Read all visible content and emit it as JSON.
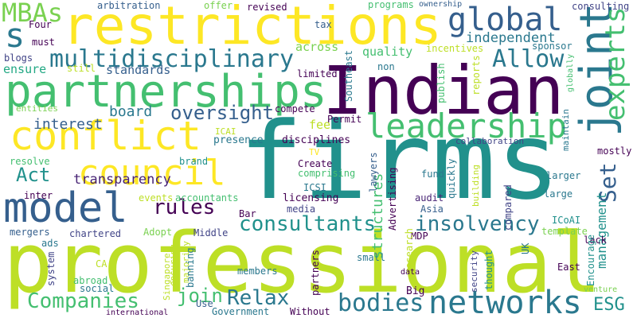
{
  "palette": {
    "dark-purple": "#440154",
    "indigo": "#482475",
    "blue-violet": "#414487",
    "slate-blue": "#355f8d",
    "steel-blue": "#2a788e",
    "teal": "#21918c",
    "sea-green": "#22a884",
    "green": "#44bf70",
    "light-green": "#7ad151",
    "lime": "#bddf26",
    "yellow": "#fde725"
  },
  "words": {
    "firms": "firms",
    "professional": "professional",
    "indian": "Indian",
    "restrictions": "restrictions",
    "partnerships": "partnerships",
    "conflict": "conflict",
    "joint": "joint",
    "model": "model",
    "council": "council",
    "leadership": "leadership",
    "networks": "networks",
    "global": "global",
    "multidisciplinary": "multidisciplinary",
    "experts": "experts",
    "bodies": "bodies",
    "mbas": "MBAs",
    "s": "s",
    "allow": "Allow",
    "consultants": "consultants",
    "insolvency": "insolvency",
    "companies": "Companies",
    "rules": "rules",
    "oversight": "oversight",
    "relax": "Relax",
    "set": "Set",
    "act": "Act",
    "join": "join",
    "esg": "ESG",
    "board": "board",
    "interest": "interest",
    "transparency": "transparency",
    "independent": "independent",
    "structures": "structures",
    "management": "management",
    "ensure": "ensure",
    "quality": "quality",
    "standards": "standards",
    "across": "across",
    "consulting": "consulting",
    "arbitration": "arbitration",
    "offer": "offer",
    "revised": "revised",
    "programs": "programs",
    "ownership": "ownership",
    "four": "Four",
    "tax": "tax",
    "must": "must",
    "blogs": "blogs",
    "still": "still",
    "incentives": "incentives",
    "sponsor": "sponsor",
    "non": "non",
    "southeast": "Southeast",
    "limited": "limited",
    "publish": "publish",
    "reports": "reports",
    "globally": "globally",
    "entities": "entities",
    "compete": "compete",
    "fee": "fee",
    "permit": "Permit",
    "maintain": "maintain",
    "icai": "ICAI",
    "presence": "presence",
    "disciplines": "disciplines",
    "collaboration": "collaboration",
    "mostly": "mostly",
    "resolve": "resolve",
    "brand": "brand",
    "tv": "TV",
    "create": "Create",
    "comprising": "comprising",
    "lawyers": "lawyers",
    "quickly": "quickly",
    "fund": "fund",
    "larger": "larger",
    "building": "building",
    "inter": "inter",
    "events": "events",
    "accountants": "accountants",
    "icsi": "ICSI",
    "licensing": "licensing",
    "advertising": "Advertising",
    "audit": "audit",
    "compared": "compared",
    "large": "large",
    "media": "media",
    "asia": "Asia",
    "bar": "Bar",
    "icoai": "ICoAI",
    "mergers": "mergers",
    "adopt": "Adopt",
    "mdp": "MDP",
    "template": "template",
    "chartered": "chartered",
    "middle": "Middle",
    "lack": "lack",
    "uk": "UK",
    "small": "small",
    "research": "research",
    "encourage": "Encourage",
    "ads": "ads",
    "ca": "CA",
    "system": "system",
    "ensuring": "ensuring",
    "majority": "majority",
    "banning": "banning",
    "members": "members",
    "partners": "partners",
    "thought": "thought",
    "abroad": "abroad",
    "singapore": "Singapore",
    "social": "social",
    "data": "data",
    "security": "security",
    "east": "East",
    "big": "Big",
    "use": "Use",
    "government": "Government",
    "without": "Without",
    "international": "international",
    "venture": "venture"
  }
}
